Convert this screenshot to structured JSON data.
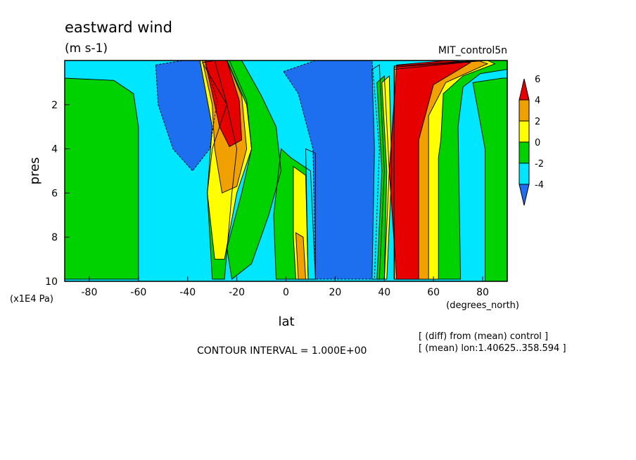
{
  "chart_data": {
    "type": "heatmap",
    "title": "eastward wind",
    "units": "(m s-1)",
    "run_label": "MIT_control5n",
    "xlabel": "lat",
    "ylabel": "pres",
    "x_units": "(degrees_north)",
    "y_units": "(x1E4 Pa)",
    "xlim": [
      -90,
      90
    ],
    "ylim": [
      10,
      0
    ],
    "x_ticks": [
      -80,
      -60,
      -40,
      -20,
      0,
      20,
      40,
      60,
      80
    ],
    "x_tick_labels": [
      "-80",
      "-60",
      "-40",
      "-20",
      "0",
      "20",
      "40",
      "60",
      "80"
    ],
    "y_ticks": [
      2,
      4,
      6,
      8,
      10
    ],
    "y_tick_labels": [
      "2",
      "4",
      "6",
      "8",
      "10"
    ],
    "contour_interval_text": "CONTOUR INTERVAL = 1.000E+00",
    "notes": [
      "[ (diff) from (mean) control ]",
      "[ (mean) lon:1.40625..358.594 ]"
    ],
    "colorbar": {
      "colors": [
        "#1e6ef0",
        "#00e6ff",
        "#00d200",
        "#ffff00",
        "#f0a000",
        "#e60000"
      ],
      "labels": [
        "-4",
        "-2",
        "0",
        "2",
        "4",
        "6"
      ],
      "levels": [
        -4,
        -2,
        0,
        2,
        4,
        6
      ]
    },
    "field": {
      "base": "#00e6ff",
      "regions": [
        {
          "color": "#00d200",
          "pts": [
            [
              -90,
              0.8
            ],
            [
              -70,
              0.9
            ],
            [
              -62,
              1.5
            ],
            [
              -60,
              3
            ],
            [
              -60,
              9.9
            ],
            [
              -90,
              9.9
            ]
          ]
        },
        {
          "color": "#00d200",
          "pts": [
            [
              76,
              1
            ],
            [
              88,
              0.8
            ],
            [
              90,
              0.8
            ],
            [
              90,
              10
            ],
            [
              81,
              10
            ],
            [
              81,
              4
            ],
            [
              78,
              2.2
            ]
          ]
        },
        {
          "color": "#1e6ef0",
          "pts": [
            [
              -53,
              0.2
            ],
            [
              -42,
              0
            ],
            [
              -33,
              0
            ],
            [
              -28,
              1.8
            ],
            [
              -31,
              4
            ],
            [
              -38,
              5
            ],
            [
              -46,
              4
            ],
            [
              -52,
              2
            ]
          ]
        },
        {
          "color": "#00d200",
          "pts": [
            [
              -34,
              0.1
            ],
            [
              -29,
              0
            ],
            [
              -24,
              2
            ],
            [
              -30,
              4
            ],
            [
              -32,
              6
            ],
            [
              -30,
              9.9
            ],
            [
              -25,
              9.9
            ],
            [
              -22,
              6
            ],
            [
              -20,
              4
            ],
            [
              -24,
              2
            ]
          ]
        },
        {
          "color": "#ffff00",
          "pts": [
            [
              -35,
              0
            ],
            [
              -23,
              0
            ],
            [
              -16,
              1.8
            ],
            [
              -14,
              4
            ],
            [
              -20,
              6
            ],
            [
              -25,
              9
            ],
            [
              -29,
              9
            ],
            [
              -32,
              6
            ],
            [
              -30,
              3
            ]
          ]
        },
        {
          "color": "#f0a000",
          "pts": [
            [
              -34,
              0
            ],
            [
              -24,
              0
            ],
            [
              -18,
              1.6
            ],
            [
              -16,
              4
            ],
            [
              -20,
              5.7
            ],
            [
              -26,
              6
            ],
            [
              -29,
              4
            ],
            [
              -30,
              2
            ]
          ]
        },
        {
          "color": "#e60000",
          "pts": [
            [
              -33,
              0
            ],
            [
              -24,
              0
            ],
            [
              -19,
              1.8
            ],
            [
              -18,
              3.6
            ],
            [
              -23,
              3.9
            ],
            [
              -27,
              3
            ],
            [
              -30,
              1.5
            ]
          ]
        },
        {
          "color": "#00d200",
          "pts": [
            [
              -24,
              0
            ],
            [
              -18,
              0
            ],
            [
              -10,
              1.6
            ],
            [
              -4,
              3
            ],
            [
              -2,
              5
            ],
            [
              -7,
              7
            ],
            [
              -14,
              9.2
            ],
            [
              -22,
              9.9
            ],
            [
              -24,
              8.5
            ],
            [
              -18,
              6
            ],
            [
              -14,
              4
            ],
            [
              -16,
              2
            ]
          ]
        },
        {
          "color": "#00d200",
          "pts": [
            [
              -2,
              4
            ],
            [
              2,
              4.4
            ],
            [
              10,
              5
            ],
            [
              12,
              9.9
            ],
            [
              -4,
              9.9
            ],
            [
              -5,
              7
            ]
          ]
        },
        {
          "color": "#ffff00",
          "pts": [
            [
              3,
              4.8
            ],
            [
              8,
              5.2
            ],
            [
              9,
              9.9
            ],
            [
              4,
              9.9
            ],
            [
              3,
              8
            ]
          ]
        },
        {
          "color": "#f0a000",
          "pts": [
            [
              4,
              7.8
            ],
            [
              7,
              8
            ],
            [
              8,
              9.9
            ],
            [
              5,
              9.9
            ]
          ]
        },
        {
          "color": "#00e6ff",
          "pts": [
            [
              8,
              4
            ],
            [
              12,
              4.2
            ],
            [
              12,
              9.9
            ],
            [
              9,
              9.9
            ]
          ]
        },
        {
          "color": "#1e6ef0",
          "pts": [
            [
              -1,
              0.5
            ],
            [
              12,
              0
            ],
            [
              35,
              0
            ],
            [
              38,
              4
            ],
            [
              36,
              9.9
            ],
            [
              12,
              9.9
            ],
            [
              11,
              4
            ],
            [
              5,
              1.5
            ]
          ]
        },
        {
          "color": "#00e6ff",
          "pts": [
            [
              35,
              0.4
            ],
            [
              38,
              0.2
            ],
            [
              40,
              5
            ],
            [
              38,
              9.9
            ],
            [
              35,
              9.9
            ],
            [
              36,
              4
            ]
          ]
        },
        {
          "color": "#00d200",
          "pts": [
            [
              37,
              1
            ],
            [
              40,
              0.7
            ],
            [
              42,
              5
            ],
            [
              40,
              9.9
            ],
            [
              37,
              9.9
            ],
            [
              39,
              5
            ]
          ]
        },
        {
          "color": "#ffff00",
          "pts": [
            [
              39,
              1
            ],
            [
              42,
              0.7
            ],
            [
              43,
              5
            ],
            [
              41,
              9.9
            ],
            [
              40,
              9.9
            ],
            [
              41,
              5
            ]
          ]
        },
        {
          "color": "#00d200",
          "pts": [
            [
              44,
              0.4
            ],
            [
              80,
              0
            ],
            [
              90,
              0
            ],
            [
              90,
              0.4
            ],
            [
              79,
              0.6
            ],
            [
              72,
              1.2
            ],
            [
              70,
              3
            ],
            [
              71,
              9.9
            ],
            [
              44,
              9.9
            ]
          ]
        },
        {
          "color": "#ffff00",
          "pts": [
            [
              44,
              0.3
            ],
            [
              82,
              0
            ],
            [
              85,
              0.15
            ],
            [
              72,
              0.7
            ],
            [
              64,
              1.5
            ],
            [
              63,
              3.6
            ],
            [
              62,
              4.4
            ],
            [
              62,
              9.9
            ],
            [
              44,
              9.9
            ]
          ]
        },
        {
          "color": "#f0a000",
          "pts": [
            [
              44,
              0.25
            ],
            [
              78,
              0
            ],
            [
              82,
              0.15
            ],
            [
              65,
              1
            ],
            [
              58,
              2.5
            ],
            [
              58,
              4.5
            ],
            [
              58,
              9.9
            ],
            [
              44,
              9.9
            ]
          ]
        },
        {
          "color": "#e60000",
          "pts": [
            [
              45,
              0.2
            ],
            [
              66,
              0
            ],
            [
              75,
              0.1
            ],
            [
              60,
              1.1
            ],
            [
              54,
              3.6
            ],
            [
              54,
              9.9
            ],
            [
              45,
              9.9
            ],
            [
              42,
              5
            ]
          ]
        }
      ]
    }
  }
}
